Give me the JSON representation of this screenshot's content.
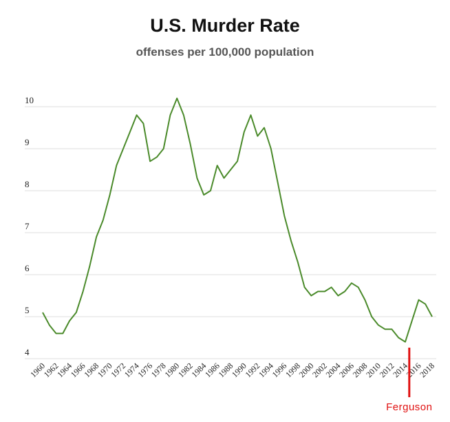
{
  "chart_data": {
    "type": "line",
    "title": "U.S. Murder Rate",
    "subtitle": "offenses per 100,000 population",
    "xlabel": "",
    "ylabel": "",
    "ylim": [
      4,
      10.5
    ],
    "yticks": [
      4,
      5,
      6,
      7,
      8,
      9,
      10
    ],
    "xlim": [
      1960,
      2018
    ],
    "xticks": [
      1960,
      1962,
      1964,
      1966,
      1968,
      1970,
      1972,
      1974,
      1976,
      1978,
      1980,
      1982,
      1984,
      1986,
      1988,
      1990,
      1992,
      1994,
      1996,
      1998,
      2000,
      2002,
      2004,
      2006,
      2008,
      2010,
      2012,
      2014,
      2016,
      2018
    ],
    "grid": "horizontal",
    "series_color": "#4a8a2a",
    "series": [
      {
        "x": [
          1960,
          1961,
          1962,
          1963,
          1964,
          1965,
          1966,
          1967,
          1968,
          1969,
          1970,
          1971,
          1972,
          1973,
          1974,
          1975,
          1976,
          1977,
          1978,
          1979,
          1980,
          1981,
          1982,
          1983,
          1984,
          1985,
          1986,
          1987,
          1988,
          1989,
          1990,
          1991,
          1992,
          1993,
          1994,
          1995,
          1996,
          1997,
          1998,
          1999,
          2000,
          2001,
          2002,
          2003,
          2004,
          2005,
          2006,
          2007,
          2008,
          2009,
          2010,
          2011,
          2012,
          2013,
          2014,
          2015,
          2016,
          2017,
          2018
        ],
        "values": [
          5.1,
          4.8,
          4.6,
          4.6,
          4.9,
          5.1,
          5.6,
          6.2,
          6.9,
          7.3,
          7.9,
          8.6,
          9.0,
          9.4,
          9.8,
          9.6,
          8.7,
          8.8,
          9.0,
          9.8,
          10.2,
          9.8,
          9.1,
          8.3,
          7.9,
          8.0,
          8.6,
          8.3,
          8.5,
          8.7,
          9.4,
          9.8,
          9.3,
          9.5,
          9.0,
          8.2,
          7.4,
          6.8,
          6.3,
          5.7,
          5.5,
          5.6,
          5.6,
          5.7,
          5.5,
          5.6,
          5.8,
          5.7,
          5.4,
          5.0,
          4.8,
          4.7,
          4.7,
          4.5,
          4.4,
          4.9,
          5.4,
          5.3,
          5.0
        ]
      }
    ],
    "annotation": {
      "label": "Ferguson",
      "year": 2014.6,
      "color": "#e01010"
    }
  }
}
